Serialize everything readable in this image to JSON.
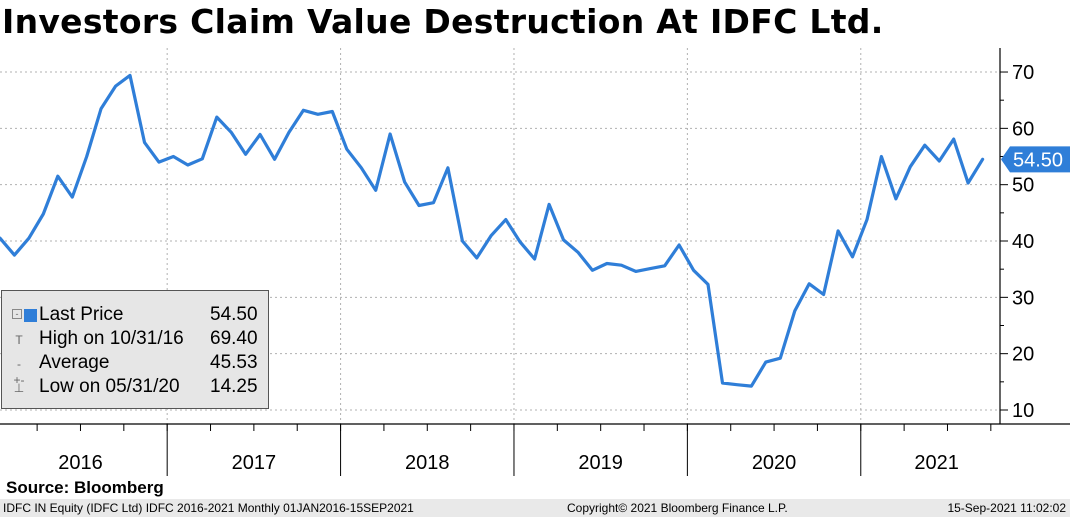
{
  "title": "Investors Claim Value Destruction At IDFC Ltd.",
  "chart_data": {
    "type": "line",
    "series_name": "Last Price",
    "color": "#2f7ed8",
    "ylim": [
      8,
      74
    ],
    "yticks": [
      10,
      20,
      30,
      40,
      50,
      60,
      70
    ],
    "ytick_labels": [
      "10",
      "20",
      "30",
      "40",
      "50",
      "60",
      "70"
    ],
    "x_categories": [
      "2016",
      "2017",
      "2018",
      "2019",
      "2020",
      "2021"
    ],
    "x": [
      "Jan-16",
      "Feb-16",
      "Mar-16",
      "Apr-16",
      "May-16",
      "Jun-16",
      "Jul-16",
      "Aug-16",
      "Sep-16",
      "Oct-16",
      "Nov-16",
      "Dec-16",
      "Jan-17",
      "Feb-17",
      "Mar-17",
      "Apr-17",
      "May-17",
      "Jun-17",
      "Jul-17",
      "Aug-17",
      "Sep-17",
      "Oct-17",
      "Nov-17",
      "Dec-17",
      "Jan-18",
      "Feb-18",
      "Mar-18",
      "Apr-18",
      "May-18",
      "Jun-18",
      "Jul-18",
      "Aug-18",
      "Sep-18",
      "Oct-18",
      "Nov-18",
      "Dec-18",
      "Jan-19",
      "Feb-19",
      "Mar-19",
      "Apr-19",
      "May-19",
      "Jun-19",
      "Jul-19",
      "Aug-19",
      "Sep-19",
      "Oct-19",
      "Nov-19",
      "Dec-19",
      "Jan-20",
      "Feb-20",
      "Mar-20",
      "Apr-20",
      "May-20",
      "Jun-20",
      "Jul-20",
      "Aug-20",
      "Sep-20",
      "Oct-20",
      "Nov-20",
      "Dec-20",
      "Jan-21",
      "Feb-21",
      "Mar-21",
      "Apr-21",
      "May-21",
      "Jun-21",
      "Jul-21",
      "Aug-21",
      "Sep-21"
    ],
    "values": [
      40.5,
      37.5,
      40.5,
      44.8,
      51.5,
      47.8,
      55,
      63.5,
      67.5,
      69.4,
      57.5,
      54,
      55,
      53.5,
      54.6,
      62,
      59.3,
      55.4,
      58.9,
      54.5,
      59.3,
      63.2,
      62.5,
      63,
      56.3,
      53,
      49,
      59,
      50.5,
      46.3,
      46.8,
      53,
      40,
      37,
      41,
      43.8,
      39.8,
      36.8,
      46.5,
      40.2,
      38,
      34.8,
      36,
      35.7,
      34.6,
      35.1,
      35.6,
      39.3,
      34.8,
      32.3,
      14.8,
      14.5,
      14.25,
      18.5,
      19.2,
      27.6,
      32.4,
      30.5,
      41.8,
      37.2,
      43.8,
      55,
      47.5,
      53.2,
      57,
      54.2,
      58.1,
      50.3,
      54.5
    ],
    "last_value_label": "54.50"
  },
  "legend": {
    "rows": [
      {
        "label": "Last Price",
        "value": "54.50"
      },
      {
        "label": "High on 10/31/16",
        "value": "69.40"
      },
      {
        "label": "Average",
        "value": "45.53"
      },
      {
        "label": "Low on 05/31/20",
        "value": "14.25"
      }
    ]
  },
  "source": "Source: Bloomberg",
  "footer": {
    "left": "IDFC IN Equity (IDFC Ltd) IDFC 2016-2021  Monthly 01JAN2016-15SEP2021",
    "center": "Copyright© 2021 Bloomberg Finance L.P.",
    "right": "15-Sep-2021 11:02:02"
  }
}
